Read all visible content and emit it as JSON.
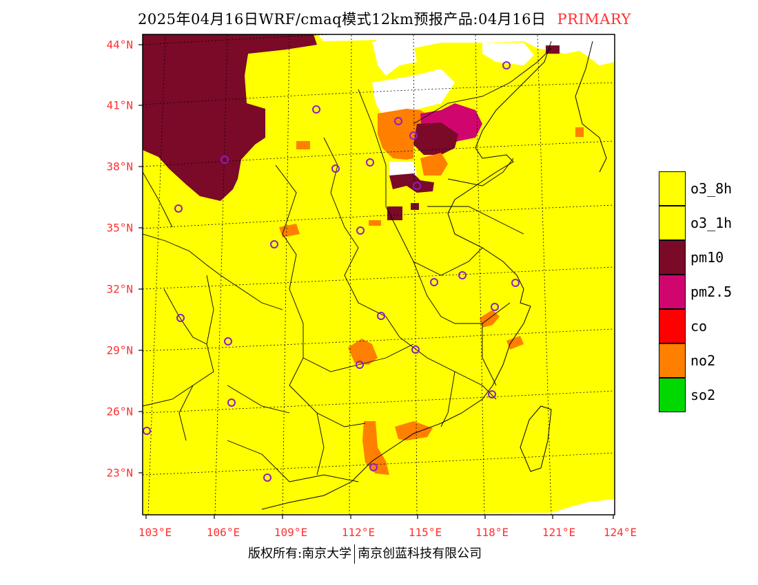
{
  "header": {
    "title": "2025年04月16日WRF/cmaq模式12km预报产品:04月16日",
    "badge": "PRIMARY"
  },
  "axes": {
    "lat_labels": [
      "44°N",
      "41°N",
      "38°N",
      "35°N",
      "32°N",
      "29°N",
      "26°N",
      "23°N"
    ],
    "lon_labels": [
      "103°E",
      "106°E",
      "109°E",
      "112°E",
      "115°E",
      "118°E",
      "121°E",
      "124°E"
    ]
  },
  "legend": {
    "items": [
      {
        "label": "o3_8h",
        "color": "#ffff00"
      },
      {
        "label": "o3_1h",
        "color": "#ffff00"
      },
      {
        "label": "pm10",
        "color": "#7a0a28"
      },
      {
        "label": "pm2.5",
        "color": "#d0066e"
      },
      {
        "label": "co",
        "color": "#ff0000"
      },
      {
        "label": "no2",
        "color": "#ff7f00"
      },
      {
        "label": "so2",
        "color": "#00d800"
      }
    ]
  },
  "footer": {
    "left": "版权所有:南京大学",
    "right": "南京创蓝科技有限公司"
  },
  "colors": {
    "o3": "#ffff00",
    "pm10": "#7a0a28",
    "pm25": "#d0066e",
    "no2": "#ff7f00",
    "station": "#8c1ec8",
    "axis_label": "#ff3030"
  }
}
